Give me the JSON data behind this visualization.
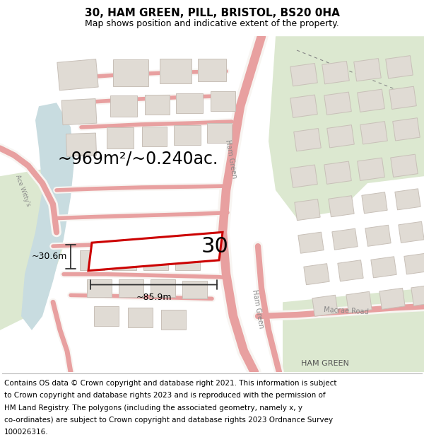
{
  "title": "30, HAM GREEN, PILL, BRISTOL, BS20 0HA",
  "subtitle": "Map shows position and indicative extent of the property.",
  "footer_lines": [
    "Contains OS data © Crown copyright and database right 2021. This information is subject",
    "to Crown copyright and database rights 2023 and is reproduced with the permission of",
    "HM Land Registry. The polygons (including the associated geometry, namely x, y",
    "co-ordinates) are subject to Crown copyright and database rights 2023 Ordnance Survey",
    "100026316."
  ],
  "area_text": "~969m²/~0.240ac.",
  "label_30": "30",
  "dim_width": "~85.9m",
  "dim_height": "~30.6m",
  "map_bg": "#f5f4f1",
  "road_color": "#e8a0a0",
  "road_fill": "#f8f5f2",
  "plot_color": "#cc0000",
  "green_color": "#dce8d0",
  "water_color": "#c8dce0",
  "building_color": "#e0dbd4",
  "building_edge": "#c8c0b8",
  "dim_color": "#333333",
  "text_color": "#444444",
  "title_fontsize": 11,
  "subtitle_fontsize": 9,
  "footer_fontsize": 7.5,
  "area_fontsize": 17,
  "label_fontsize": 22,
  "dim_fontsize": 9,
  "road_label_fontsize": 7
}
